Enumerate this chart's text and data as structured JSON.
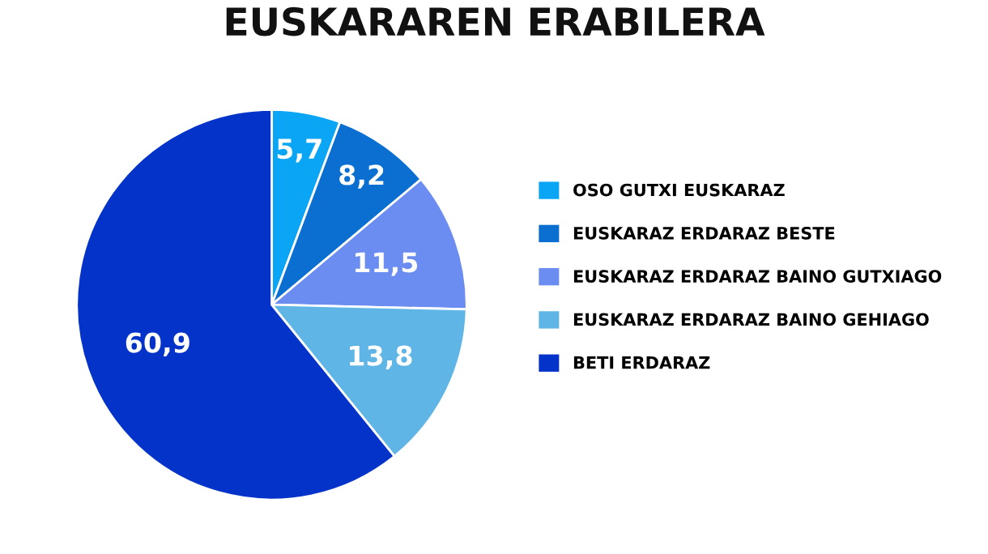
{
  "chart_data": {
    "type": "pie",
    "title": "EUSKARAREN ERABILERA",
    "categories": [
      "OSO GUTXI EUSKARAZ",
      "EUSKARAZ ERDARAZ BESTE",
      "EUSKARAZ ERDARAZ BAINO GUTXIAGO",
      "EUSKARAZ ERDARAZ BAINO GEHIAGO",
      "BETI ERDARAZ"
    ],
    "values": [
      5.7,
      8.2,
      11.5,
      13.8,
      60.9
    ],
    "value_labels": [
      "5,7",
      "8,2",
      "11,5",
      "13,8",
      "60,9"
    ],
    "colors": [
      "#0aa6f5",
      "#0b6fd1",
      "#6b8df2",
      "#5fb6e6",
      "#0433c9"
    ],
    "legend": "right"
  }
}
